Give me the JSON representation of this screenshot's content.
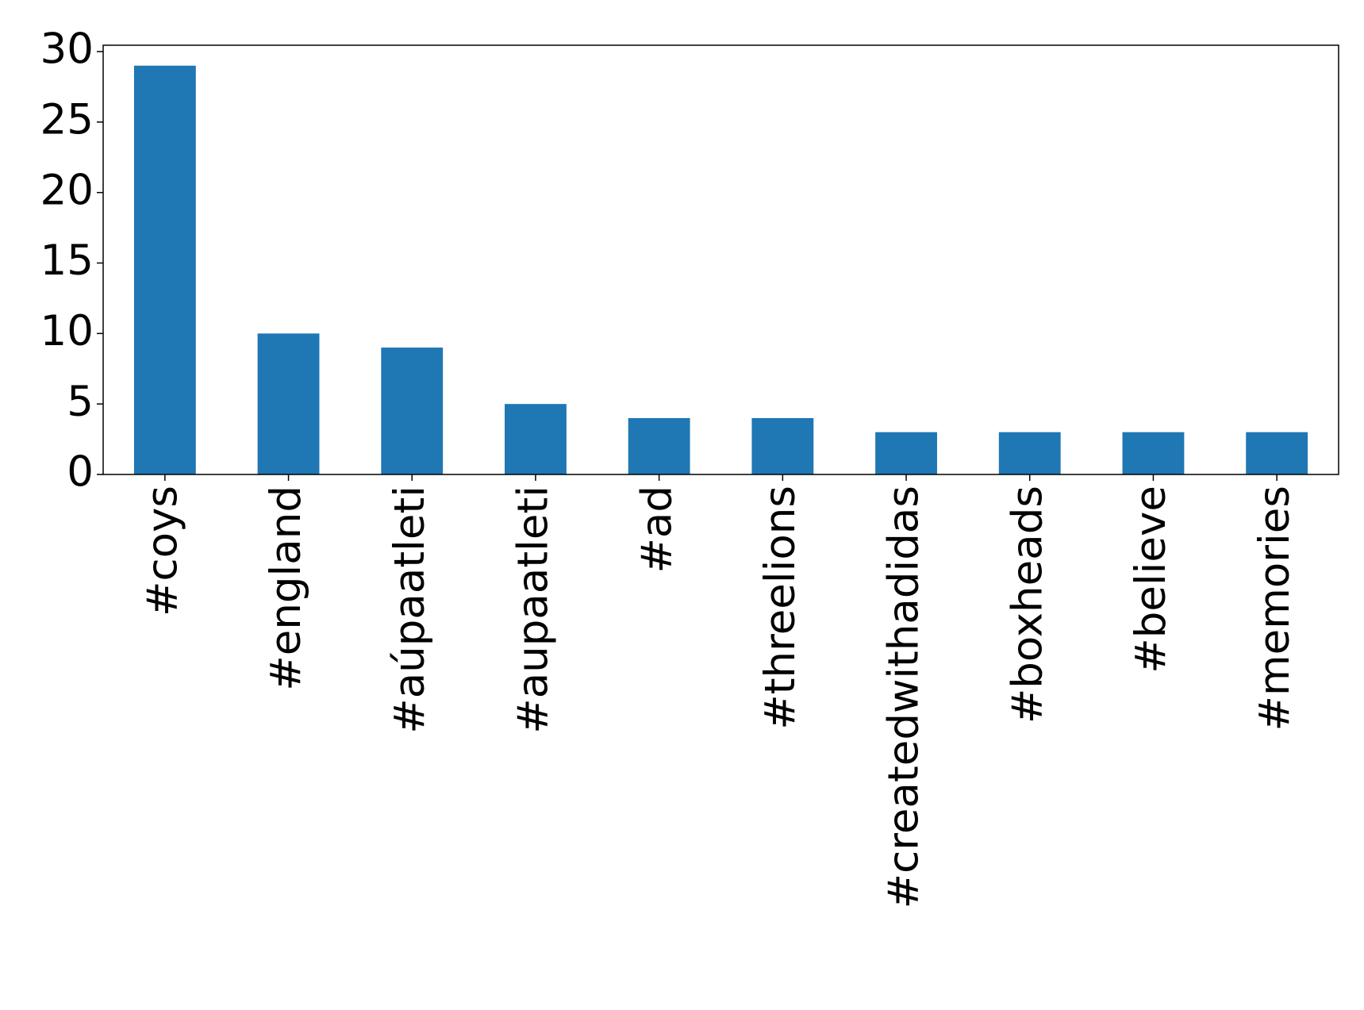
{
  "chart_data": {
    "type": "bar",
    "categories": [
      "#coys",
      "#england",
      "#aúpaatleti",
      "#aupaatleti",
      "#ad",
      "#threelions",
      "#createdwithadidas",
      "#boxheads",
      "#believe",
      "#memories"
    ],
    "values": [
      29,
      10,
      9,
      5,
      4,
      4,
      3,
      3,
      3,
      3
    ],
    "color": "#1f77b4",
    "ylim": [
      0,
      30.45
    ],
    "yticks": [
      0,
      5,
      10,
      15,
      20,
      25,
      30
    ],
    "grid": false
  }
}
